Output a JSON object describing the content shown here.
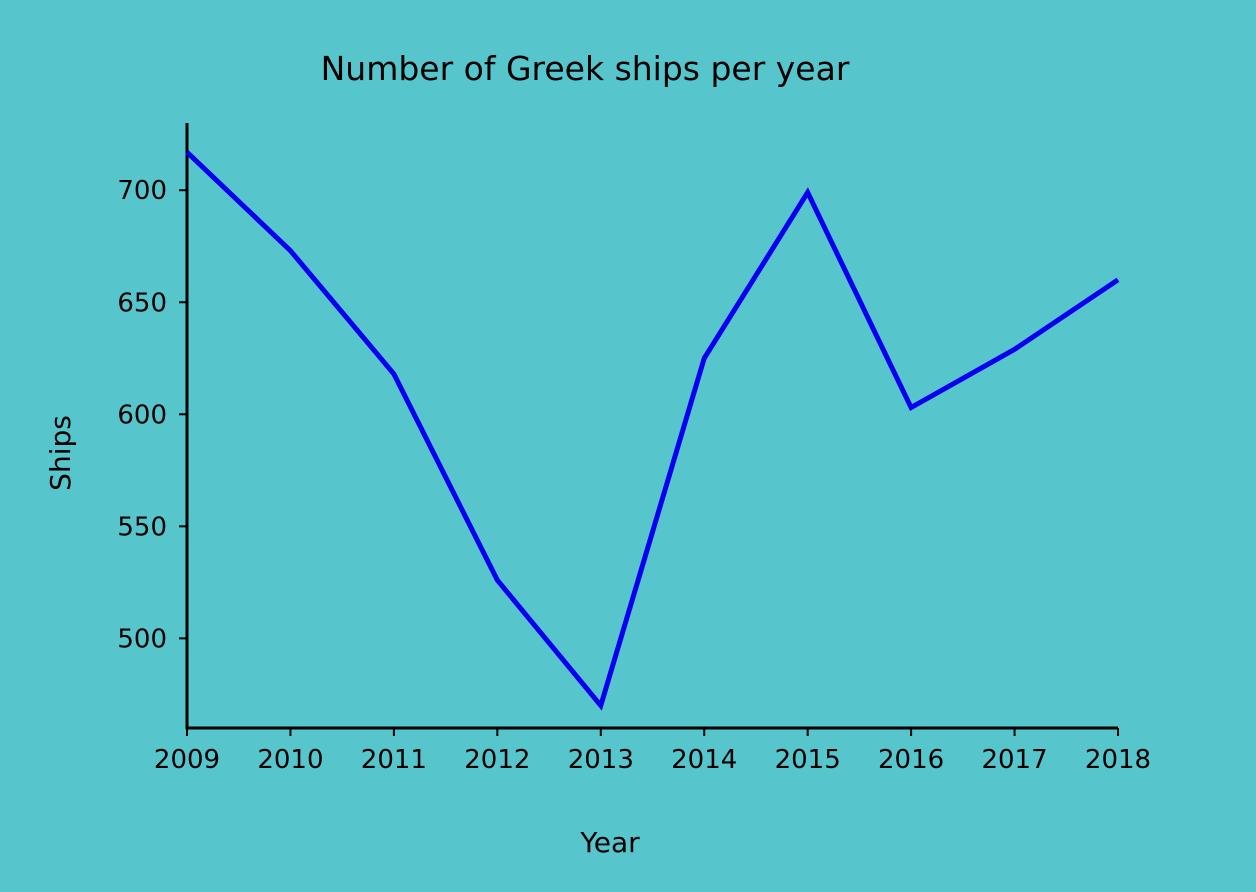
{
  "chart_data": {
    "type": "line",
    "title": "Number of Greek ships per year",
    "xlabel": "Year",
    "ylabel": "Ships",
    "x": [
      "2009",
      "2010",
      "2011",
      "2012",
      "2013",
      "2014",
      "2015",
      "2016",
      "2017",
      "2018"
    ],
    "series": [
      {
        "values": [
          717,
          673,
          618,
          526,
          470,
          625,
          699,
          603,
          629,
          660
        ],
        "color": "#0a00f0"
      }
    ],
    "ylim": [
      460,
      730
    ],
    "yticks": [
      500,
      550,
      600,
      650,
      700
    ],
    "grid": false,
    "legend": "none",
    "background": "#56c5cc"
  }
}
